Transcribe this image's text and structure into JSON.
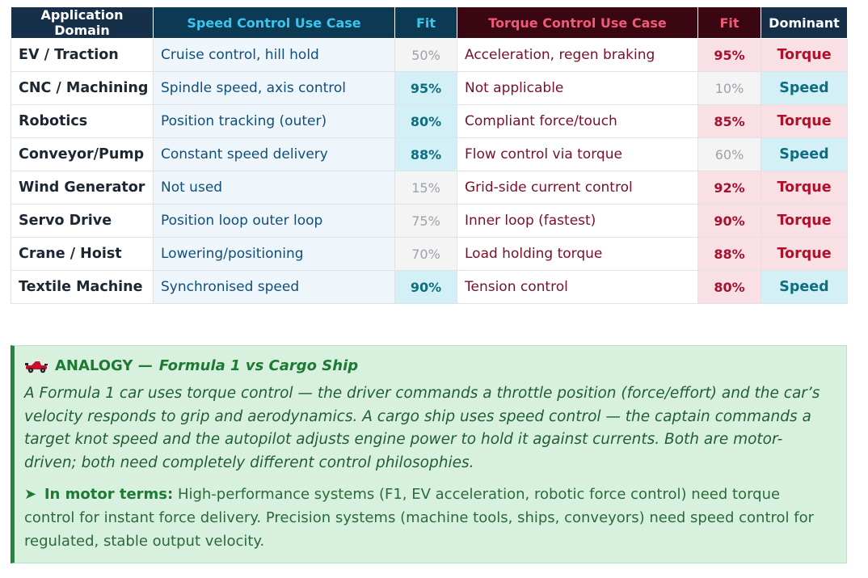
{
  "table": {
    "headers": {
      "domain": "Application Domain",
      "speed": "Speed Control Use Case",
      "fit_speed": "Fit",
      "torque": "Torque Control Use Case",
      "fit_torque": "Fit",
      "dominant": "Dominant"
    },
    "rows": [
      {
        "domain": "EV / Traction",
        "speed": "Cruise control, hill hold",
        "fit_speed": "50%",
        "torque": "Acceleration, regen braking",
        "fit_torque": "95%",
        "dominant": "Torque"
      },
      {
        "domain": "CNC / Machining",
        "speed": "Spindle speed, axis control",
        "fit_speed": "95%",
        "torque": "Not applicable",
        "fit_torque": "10%",
        "dominant": "Speed"
      },
      {
        "domain": "Robotics",
        "speed": "Position tracking (outer)",
        "fit_speed": "80%",
        "torque": "Compliant force/touch",
        "fit_torque": "85%",
        "dominant": "Torque"
      },
      {
        "domain": "Conveyor/Pump",
        "speed": "Constant speed delivery",
        "fit_speed": "88%",
        "torque": "Flow control via torque",
        "fit_torque": "60%",
        "dominant": "Speed"
      },
      {
        "domain": "Wind Generator",
        "speed": "Not used",
        "fit_speed": "15%",
        "torque": "Grid-side current control",
        "fit_torque": "92%",
        "dominant": "Torque"
      },
      {
        "domain": "Servo Drive",
        "speed": "Position loop outer loop",
        "fit_speed": "75%",
        "torque": "Inner loop (fastest)",
        "fit_torque": "90%",
        "dominant": "Torque"
      },
      {
        "domain": "Crane / Hoist",
        "speed": "Lowering/positioning",
        "fit_speed": "70%",
        "torque": "Load holding torque",
        "fit_torque": "88%",
        "dominant": "Torque"
      },
      {
        "domain": "Textile Machine",
        "speed": "Synchronised speed",
        "fit_speed": "90%",
        "torque": "Tension control",
        "fit_torque": "80%",
        "dominant": "Speed"
      }
    ]
  },
  "analogy": {
    "icon": "race-car-icon",
    "title": "ANALOGY —",
    "subtitle": "Formula 1 vs Cargo Ship",
    "body": "A Formula 1 car uses torque control — the driver commands a throttle position (force/effort) and the car’s velocity responds to grip and aerodynamics. A cargo ship uses speed control — the captain commands a target knot speed and the autopilot adjusts engine power to hold it against currents. Both are motor-driven; both need completely different control philosophies.",
    "terms_arrow": "➤",
    "terms_lead": "In motor terms:",
    "terms_text": "High-performance systems (F1, EV acceleration, robotic force control) need torque control for instant force delivery. Precision systems (machine tools, ships, conveyors) need speed control for regulated, stable output velocity."
  },
  "colors": {
    "speed_accent": "#38c6ef",
    "torque_accent": "#f05a78",
    "analogy_green": "#1e7a32"
  }
}
